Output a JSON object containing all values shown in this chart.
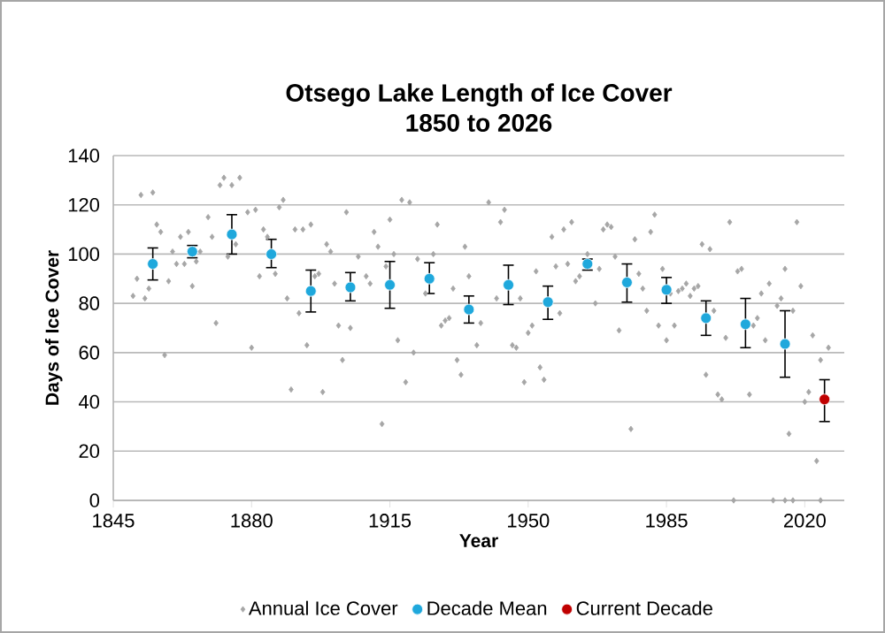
{
  "chart_data": {
    "type": "scatter",
    "title": "Otsego Lake Length of Ice Cover",
    "subtitle": "1850 to 2026",
    "xlabel": "Year",
    "ylabel": "Days of Ice Cover",
    "xlim": [
      1845,
      2030
    ],
    "ylim": [
      0,
      140
    ],
    "xticks": [
      1845,
      1880,
      1915,
      1950,
      1985,
      2020
    ],
    "yticks": [
      0,
      20,
      40,
      60,
      80,
      100,
      120,
      140
    ],
    "grid": "y",
    "legend": "bottom",
    "series": [
      {
        "name": "Annual Ice Cover",
        "color": "#a6a6a6",
        "marker": "diamond",
        "x": [
          1850,
          1851,
          1852,
          1853,
          1854,
          1855,
          1856,
          1857,
          1858,
          1859,
          1860,
          1861,
          1862,
          1863,
          1864,
          1865,
          1866,
          1867,
          1869,
          1870,
          1871,
          1872,
          1873,
          1874,
          1875,
          1876,
          1877,
          1879,
          1880,
          1881,
          1882,
          1883,
          1884,
          1886,
          1887,
          1888,
          1889,
          1890,
          1891,
          1892,
          1893,
          1894,
          1895,
          1896,
          1897,
          1898,
          1899,
          1900,
          1901,
          1902,
          1903,
          1904,
          1905,
          1907,
          1909,
          1910,
          1911,
          1912,
          1913,
          1914,
          1915,
          1916,
          1917,
          1918,
          1919,
          1920,
          1921,
          1922,
          1924,
          1926,
          1927,
          1928,
          1929,
          1930,
          1931,
          1932,
          1933,
          1934,
          1935,
          1937,
          1938,
          1940,
          1942,
          1943,
          1944,
          1946,
          1947,
          1948,
          1949,
          1950,
          1951,
          1952,
          1953,
          1954,
          1956,
          1957,
          1958,
          1959,
          1960,
          1961,
          1962,
          1963,
          1965,
          1967,
          1968,
          1969,
          1970,
          1971,
          1972,
          1973,
          1976,
          1977,
          1978,
          1979,
          1980,
          1981,
          1982,
          1983,
          1984,
          1985,
          1986,
          1987,
          1988,
          1989,
          1990,
          1991,
          1992,
          1993,
          1994,
          1995,
          1996,
          1997,
          1998,
          1999,
          2000,
          2001,
          2002,
          2003,
          2004,
          2006,
          2007,
          2008,
          2009,
          2010,
          2011,
          2012,
          2013,
          2014,
          2015,
          2015,
          2016,
          2017,
          2017,
          2018,
          2019,
          2020,
          2021,
          2022,
          2023,
          2024,
          2024,
          2026
        ],
        "values": [
          83,
          90,
          124,
          82,
          86,
          125,
          112,
          109,
          59,
          89,
          101,
          96,
          107,
          96,
          109,
          87,
          97,
          101,
          115,
          107,
          72,
          128,
          131,
          99,
          128,
          104,
          131,
          117,
          62,
          118,
          91,
          110,
          107,
          92,
          119,
          122,
          82,
          45,
          110,
          76,
          110,
          63,
          112,
          91,
          92,
          44,
          104,
          101,
          88,
          71,
          57,
          117,
          70,
          99,
          91,
          88,
          109,
          103,
          31,
          95,
          114,
          100,
          65,
          122,
          48,
          121,
          60,
          98,
          84,
          100,
          112,
          71,
          73,
          74,
          86,
          57,
          51,
          103,
          91,
          63,
          72,
          121,
          82,
          113,
          118,
          63,
          62,
          82,
          48,
          68,
          71,
          93,
          54,
          49,
          107,
          95,
          76,
          110,
          96,
          113,
          89,
          91,
          100,
          80,
          94,
          110,
          112,
          111,
          99,
          69,
          29,
          106,
          92,
          86,
          77,
          109,
          116,
          71,
          94,
          65,
          84,
          71,
          85,
          86,
          88,
          83,
          86,
          87,
          104,
          51,
          102,
          77,
          43,
          41,
          66,
          113,
          0,
          93,
          94,
          43,
          71,
          74,
          84,
          65,
          88,
          0,
          79,
          82,
          94,
          0,
          27,
          77,
          0,
          113,
          87,
          40,
          44,
          67,
          16,
          57,
          0,
          62
        ]
      },
      {
        "name": "Decade Mean",
        "color": "#1fa8dc",
        "marker": "circle",
        "x": [
          1855,
          1865,
          1875,
          1885,
          1895,
          1905,
          1915,
          1925,
          1935,
          1945,
          1955,
          1965,
          1975,
          1985,
          1995,
          2005,
          2015
        ],
        "values": [
          96,
          101,
          108,
          100,
          85,
          86.5,
          87.5,
          90,
          77.5,
          87.5,
          80.5,
          96,
          88.5,
          85.5,
          74,
          71.5,
          63.5
        ],
        "errors": [
          [
            89.5,
            102.5
          ],
          [
            98.5,
            103.5
          ],
          [
            100,
            116
          ],
          [
            94.5,
            106
          ],
          [
            76.5,
            93.5
          ],
          [
            81,
            92.5
          ],
          [
            78,
            97
          ],
          [
            84,
            96.5
          ],
          [
            72,
            83
          ],
          [
            79.5,
            95.5
          ],
          [
            73.5,
            87
          ],
          [
            93.5,
            98
          ],
          [
            80.5,
            96
          ],
          [
            80,
            90.5
          ],
          [
            67,
            81
          ],
          [
            62,
            82
          ],
          [
            50,
            77
          ]
        ]
      },
      {
        "name": "Current Decade",
        "color": "#c00000",
        "marker": "circle",
        "x": [
          2025
        ],
        "values": [
          41
        ],
        "errors": [
          [
            32,
            49
          ]
        ]
      }
    ]
  }
}
